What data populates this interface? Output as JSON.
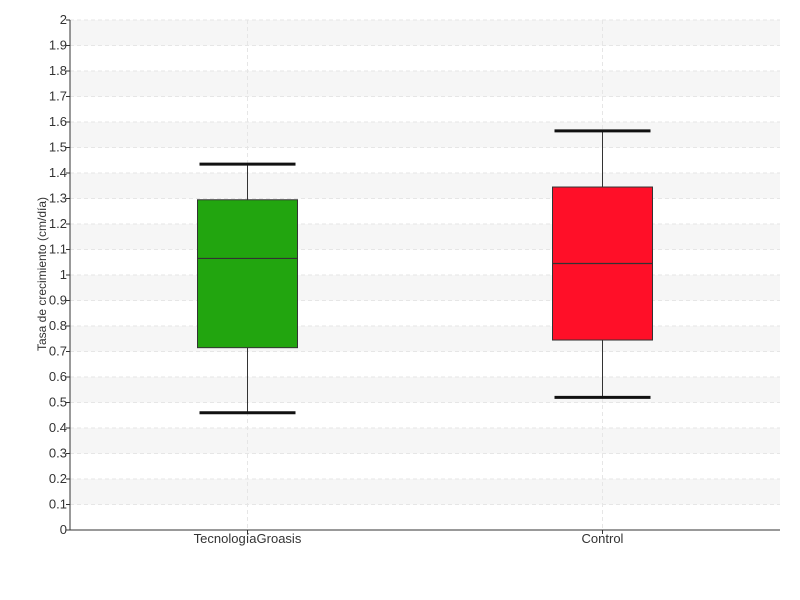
{
  "chart_data": {
    "type": "box",
    "ylabel": "Tasa de crecimiento (cm/día)",
    "ylim": [
      0,
      2
    ],
    "yticks": [
      "0",
      "0.1",
      "0.2",
      "0.3",
      "0.4",
      "0.5",
      "0.6",
      "0.7",
      "0.8",
      "0.9",
      "1",
      "1.1",
      "1.2",
      "1.3",
      "1.4",
      "1.5",
      "1.6",
      "1.7",
      "1.8",
      "1.9",
      "2"
    ],
    "grid": true,
    "categories": [
      "TecnologíaGroasis",
      "Control"
    ],
    "boxes": [
      {
        "category": "TecnologíaGroasis",
        "min": 0.46,
        "q1": 0.715,
        "median": 1.065,
        "q3": 1.295,
        "max": 1.435,
        "color": "#22a50f"
      },
      {
        "category": "Control",
        "min": 0.52,
        "q1": 0.745,
        "median": 1.045,
        "q3": 1.345,
        "max": 1.565,
        "color": "#ff0f28"
      }
    ]
  }
}
